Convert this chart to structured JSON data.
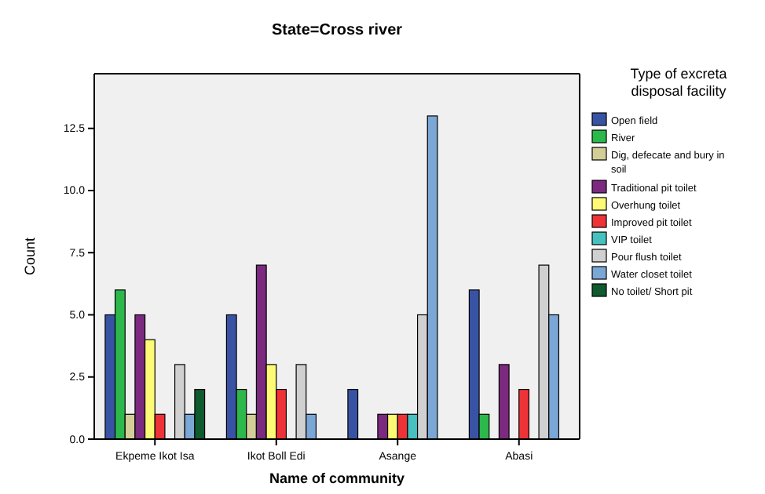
{
  "chart_data": {
    "type": "bar",
    "title": "State=Cross river",
    "xlabel": "Name of community",
    "ylabel": "Count",
    "legend_title": "Type of excreta disposal facility",
    "legend": "right",
    "grid": false,
    "categories": [
      "Ekpeme Ikot Isa",
      "Ikot Boll Edi",
      "Asange",
      "Abasi"
    ],
    "ylim": [
      0,
      14.7
    ],
    "yticks": [
      {
        "value": 0,
        "label": "0.0"
      },
      {
        "value": 2.5,
        "label": "2.5"
      },
      {
        "value": 5,
        "label": "5.0"
      },
      {
        "value": 7.5,
        "label": "7.5"
      },
      {
        "value": 10,
        "label": "10.0"
      },
      {
        "value": 12.5,
        "label": "12.5"
      }
    ],
    "series": [
      {
        "name": "Open field",
        "color": "#3953a4",
        "values": [
          5,
          5,
          2,
          6
        ]
      },
      {
        "name": "River",
        "color": "#2db84c",
        "values": [
          6,
          2,
          null,
          1
        ]
      },
      {
        "name": "Dig, defecate and bury in soil",
        "color": "#d3ce97",
        "values": [
          1,
          1,
          null,
          null
        ]
      },
      {
        "name": "Traditional pit toilet",
        "color": "#7b2a7f",
        "values": [
          5,
          7,
          1,
          3
        ]
      },
      {
        "name": "Overhung toilet",
        "color": "#fdfb76",
        "values": [
          4,
          3,
          1,
          null
        ]
      },
      {
        "name": "Improved pit toilet",
        "color": "#ee3338",
        "values": [
          1,
          2,
          1,
          2
        ]
      },
      {
        "name": "VIP toilet",
        "color": "#47c0c0",
        "values": [
          null,
          null,
          1,
          null
        ]
      },
      {
        "name": "Pour flush toilet",
        "color": "#d0d0d0",
        "values": [
          3,
          3,
          5,
          7
        ]
      },
      {
        "name": "Water closet toilet",
        "color": "#7ba7d6",
        "values": [
          1,
          1,
          13,
          5
        ]
      },
      {
        "name": "No toilet/ Short pit",
        "color": "#0f5a2e",
        "values": [
          2,
          null,
          null,
          null
        ]
      }
    ]
  }
}
